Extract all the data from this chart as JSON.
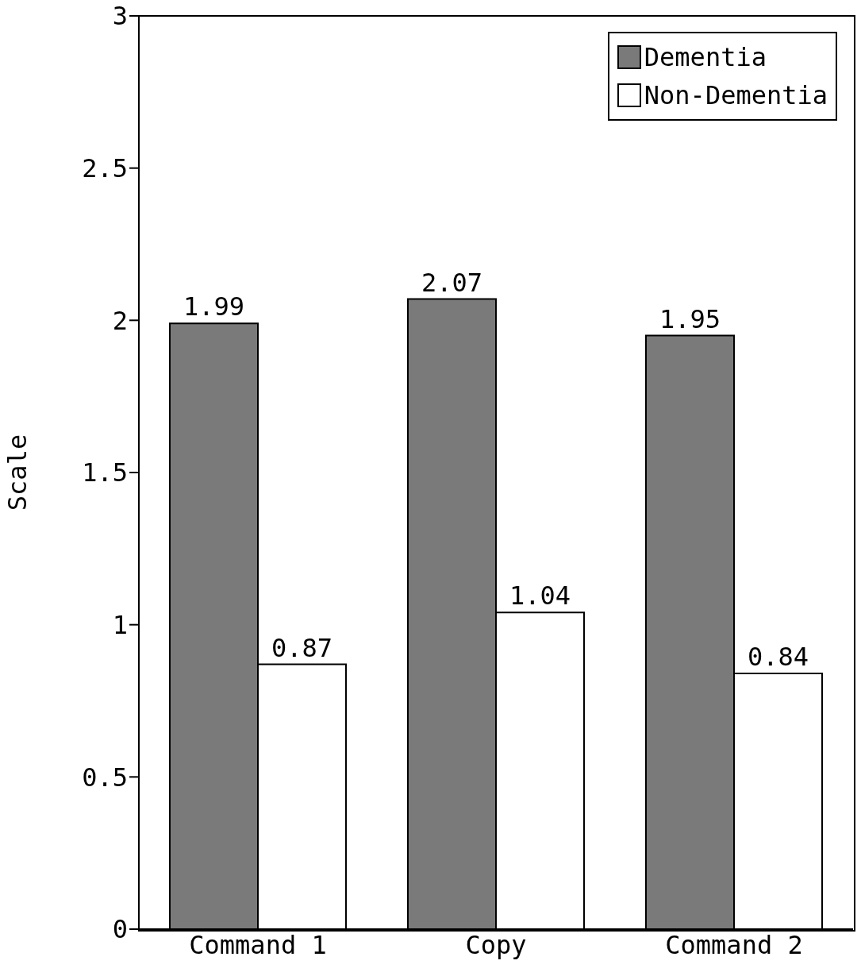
{
  "chart_data": {
    "type": "bar",
    "ylabel": "Scale",
    "categories": [
      "Command 1",
      "Copy",
      "Command 2"
    ],
    "series": [
      {
        "name": "Dementia",
        "color": "#7a7a7a",
        "values": [
          1.99,
          2.07,
          1.95
        ]
      },
      {
        "name": "Non-Dementia",
        "color": "#ffffff",
        "values": [
          0.87,
          1.04,
          0.84
        ]
      }
    ],
    "ylim": [
      0,
      3
    ],
    "yticks": [
      0,
      0.5,
      1,
      1.5,
      2,
      2.5,
      3
    ],
    "data_labels": true,
    "legend": "top right",
    "grid": false
  }
}
